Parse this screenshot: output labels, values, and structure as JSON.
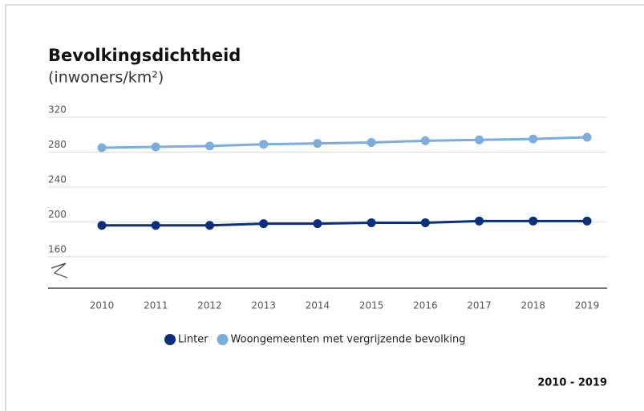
{
  "chart_data": {
    "type": "line",
    "title": "Bevolkingsdichtheid",
    "subtitle": "(inwoners/km²)",
    "categories": [
      "2010",
      "2011",
      "2012",
      "2013",
      "2014",
      "2015",
      "2016",
      "2017",
      "2018",
      "2019"
    ],
    "series": [
      {
        "name": "Linter",
        "color": "#0b2f7e",
        "values": [
          196,
          196,
          196,
          198,
          198,
          199,
          199,
          201,
          201,
          201
        ]
      },
      {
        "name": "Woongemeenten met vergrijzende bevolking",
        "color": "#7aade0",
        "values": [
          285,
          286,
          287,
          289,
          290,
          291,
          293,
          294,
          295,
          297
        ]
      }
    ],
    "ylim": [
      124,
      320
    ],
    "yticks": [
      160,
      200,
      240,
      280,
      320
    ],
    "grid": true,
    "legend": "bottom",
    "period": "2010 - 2019"
  }
}
